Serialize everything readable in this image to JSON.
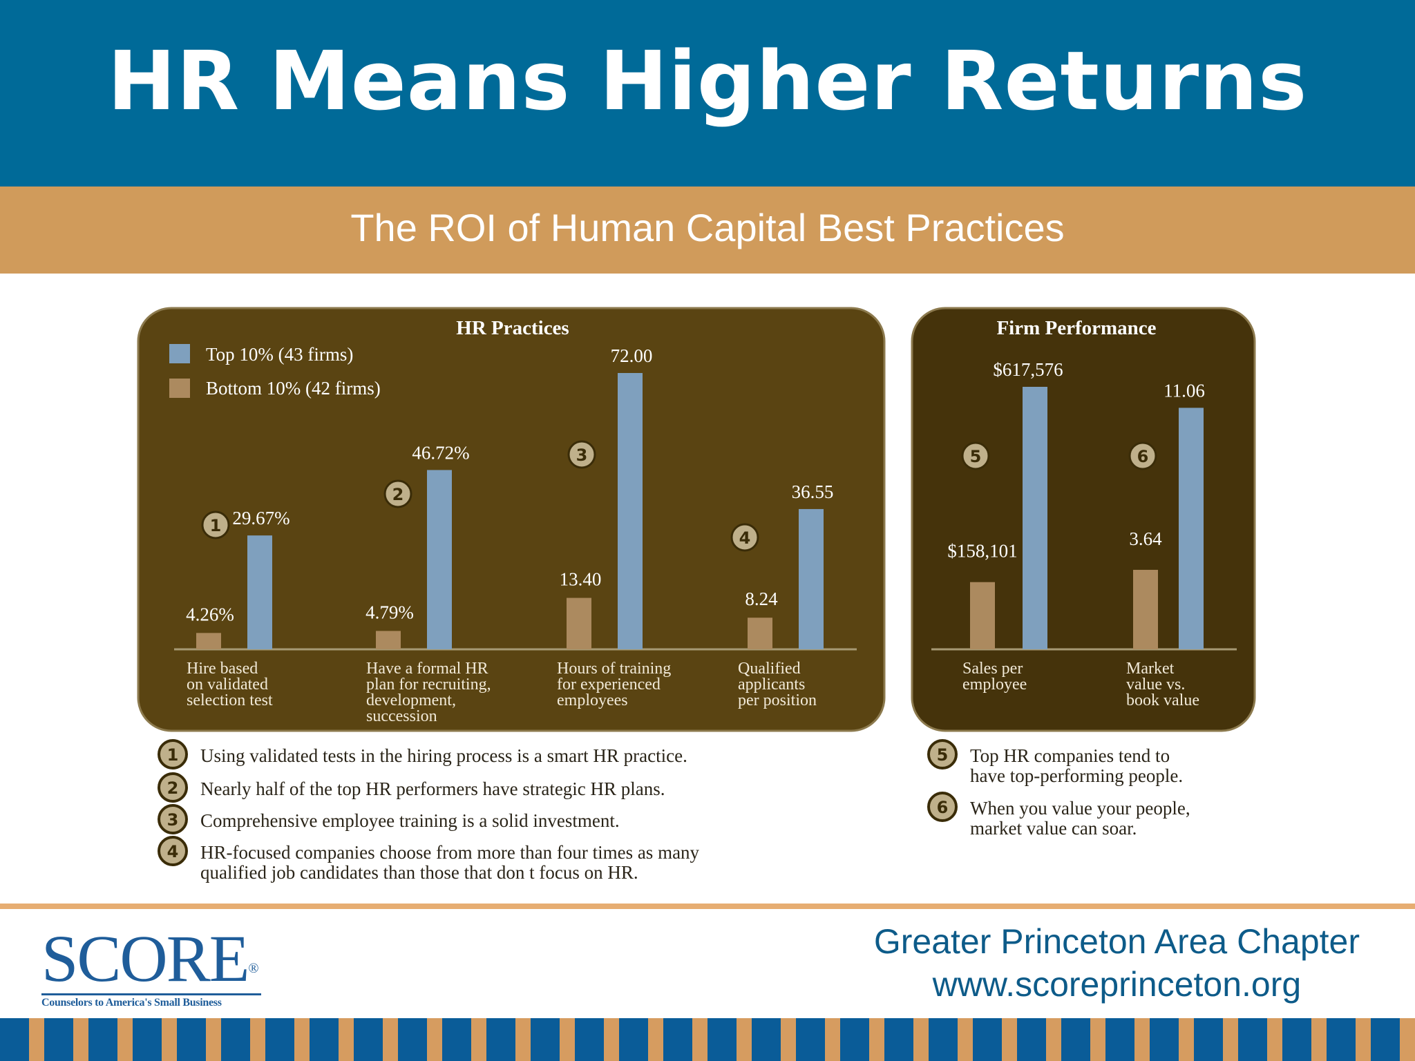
{
  "slide": {
    "title": "HR Means Higher Returns",
    "subtitle": "The ROI of Human Capital Best Practices"
  },
  "colors": {
    "header_blue": "#006a98",
    "band_tan": "#d09b5b",
    "panel_brown": "#5a4412",
    "panel_dark": "#45330b",
    "top_bar": "#7fa0be",
    "bottom_bar": "#ac8a5f"
  },
  "chart_data": [
    {
      "type": "bar",
      "title": "HR Practices",
      "legend_placement": "top-left",
      "categories": [
        "Hire based on validated selection test",
        "Have a formal HR plan for recruiting, development, succession",
        "Hours of training for experienced employees",
        "Qualified applicants per position"
      ],
      "category_lines": [
        [
          "Hire based",
          "on validated",
          "selection test"
        ],
        [
          "Have a formal HR",
          "plan for recruiting,",
          "development,",
          "succession"
        ],
        [
          "Hours of training",
          "for experienced",
          "employees"
        ],
        [
          "Qualified",
          "applicants",
          "per position"
        ]
      ],
      "markers": [
        "1",
        "2",
        "3",
        "4"
      ],
      "series": [
        {
          "name": "Bottom 10% (42 firms)",
          "values": [
            4.26,
            4.79,
            13.4,
            8.24
          ],
          "labels": [
            "4.26%",
            "4.79%",
            "13.40",
            "8.24"
          ]
        },
        {
          "name": "Top 10% (43 firms)",
          "values": [
            29.67,
            46.72,
            72.0,
            36.55
          ],
          "labels": [
            "29.67%",
            "46.72%",
            "72.00",
            "36.55"
          ]
        }
      ],
      "legend": [
        "Top 10% (43 firms)",
        "Bottom 10% (42 firms)"
      ],
      "ylim": [
        0,
        72
      ]
    },
    {
      "type": "bar",
      "title": "Firm Performance",
      "categories": [
        "Sales per employee",
        "Market value vs. book value"
      ],
      "category_lines": [
        [
          "Sales per",
          "employee"
        ],
        [
          "Market",
          "value vs.",
          "book value"
        ]
      ],
      "markers": [
        "5",
        "6"
      ],
      "series": [
        {
          "name": "Bottom 10% (42 firms)",
          "values": [
            158101,
            3.64
          ],
          "labels": [
            "$158,101",
            "3.64"
          ]
        },
        {
          "name": "Top 10% (43 firms)",
          "values": [
            617576,
            11.06
          ],
          "labels": [
            "$617,576",
            "11.06"
          ]
        }
      ],
      "scale_note": "each category scaled independently"
    }
  ],
  "notes": [
    {
      "num": "1",
      "lines": [
        "Using validated tests in the hiring process is a smart HR practice."
      ]
    },
    {
      "num": "2",
      "lines": [
        "Nearly half of the top HR performers have strategic HR plans."
      ]
    },
    {
      "num": "3",
      "lines": [
        "Comprehensive employee training is a solid investment."
      ]
    },
    {
      "num": "4",
      "lines": [
        "HR-focused companies choose from more than four times as many",
        "qualified job candidates than those that don t focus on HR."
      ]
    },
    {
      "num": "5",
      "lines": [
        "Top HR companies tend to",
        "have top-performing people."
      ]
    },
    {
      "num": "6",
      "lines": [
        "When you value your people,",
        "market value can soar."
      ]
    }
  ],
  "footer": {
    "logo": "SCORE",
    "logo_reg": "®",
    "logo_tagline": "Counselors to America's Small Business",
    "chapter": "Greater Princeton Area Chapter",
    "url": "www.scoreprinceton.org"
  }
}
